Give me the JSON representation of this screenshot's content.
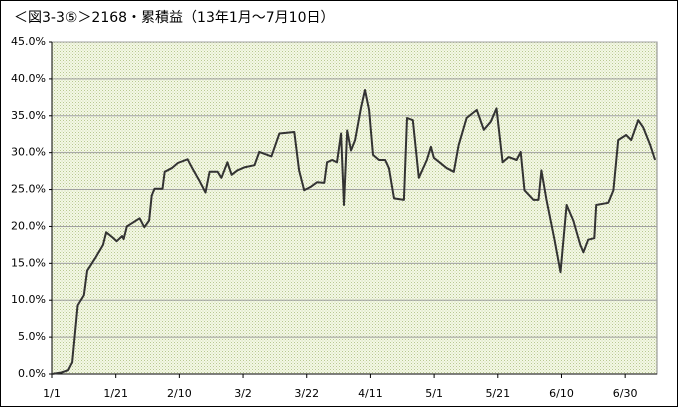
{
  "chart_data": {
    "type": "line",
    "title": "＜図3-3⑤＞2168・累積益（13年1月～7月10日）",
    "color": "#333333",
    "grid": true,
    "xlim": [
      0,
      190
    ],
    "xticks": [
      {
        "value": 0,
        "label": "1/1"
      },
      {
        "value": 20,
        "label": "1/21"
      },
      {
        "value": 40,
        "label": "2/10"
      },
      {
        "value": 60,
        "label": "3/2"
      },
      {
        "value": 80,
        "label": "3/22"
      },
      {
        "value": 100,
        "label": "4/11"
      },
      {
        "value": 120,
        "label": "5/1"
      },
      {
        "value": 140,
        "label": "5/21"
      },
      {
        "value": 160,
        "label": "6/10"
      },
      {
        "value": 180,
        "label": "6/30"
      }
    ],
    "ylim": [
      0,
      45
    ],
    "yticks": [
      {
        "value": 0,
        "label": "0.0%"
      },
      {
        "value": 5,
        "label": "5.0%"
      },
      {
        "value": 10,
        "label": "10.0%"
      },
      {
        "value": 15,
        "label": "15.0%"
      },
      {
        "value": 20,
        "label": "20.0%"
      },
      {
        "value": 25,
        "label": "25.0%"
      },
      {
        "value": 30,
        "label": "30.0%"
      },
      {
        "value": 35,
        "label": "35.0%"
      },
      {
        "value": 40,
        "label": "40.0%"
      },
      {
        "value": 45,
        "label": "45.0%"
      }
    ],
    "x": [
      0,
      3,
      5,
      6.3,
      8,
      10,
      11,
      13.5,
      16,
      17,
      19,
      20.3,
      22,
      22.5,
      23.5,
      26,
      27.5,
      29,
      30.5,
      31.3,
      32.2,
      34.7,
      35.4,
      37.6,
      39.5,
      42.6,
      43.8,
      46.3,
      48.2,
      49.5,
      52,
      53.2,
      55.1,
      56.4,
      58.2,
      60.4,
      63.6,
      65.1,
      68.9,
      71.4,
      76.1,
      77.6,
      79.2,
      81.4,
      83.3,
      85.5,
      86.4,
      88,
      89.5,
      90.8,
      91.7,
      92.7,
      93.9,
      95.2,
      97,
      98.3,
      99.6,
      100.8,
      102.7,
      104.6,
      105.8,
      107.4,
      110.5,
      111.5,
      113.3,
      115.2,
      117.7,
      119,
      119.9,
      124,
      126.2,
      127.7,
      130.2,
      133.4,
      135.6,
      137.8,
      139.6,
      141.5,
      143.4,
      145.9,
      147.2,
      148.4,
      151.2,
      152.8,
      153.7,
      155.3,
      157.8,
      159.7,
      161.6,
      163.7,
      165.9,
      166.9,
      168.4,
      170.3,
      170.9,
      174.7,
      176.3,
      177.8,
      180.3,
      181.9,
      184.1,
      185.7,
      187.9,
      189.4
    ],
    "values": [
      0,
      0.2,
      0.5,
      1.6,
      9.3,
      10.7,
      14,
      15.7,
      17.5,
      19.2,
      18.5,
      18,
      18.7,
      18.3,
      20,
      20.7,
      21.1,
      19.9,
      20.8,
      24.2,
      25.1,
      25.1,
      27.4,
      27.9,
      28.6,
      29.1,
      28.1,
      26.2,
      24.6,
      27.4,
      27.4,
      26.6,
      28.7,
      27,
      27.6,
      28,
      28.3,
      30.1,
      29.5,
      32.6,
      32.8,
      27.6,
      24.9,
      25.4,
      26,
      25.9,
      28.7,
      29,
      28.7,
      32.6,
      22.9,
      33,
      30.3,
      31.7,
      36,
      38.5,
      35.8,
      29.7,
      29,
      29,
      27.9,
      23.8,
      23.6,
      34.7,
      34.4,
      26.6,
      29,
      30.8,
      29.3,
      27.9,
      27.4,
      31,
      34.7,
      35.8,
      33.1,
      34.2,
      36,
      28.7,
      29.4,
      29,
      30.1,
      24.9,
      23.6,
      23.6,
      27.6,
      23.6,
      18.2,
      13.8,
      22.9,
      20.8,
      17.5,
      16.5,
      18.2,
      18.4,
      22.9,
      23.2,
      24.9,
      31.7,
      32.4,
      31.7,
      34.4,
      33.4,
      31,
      29
    ]
  }
}
